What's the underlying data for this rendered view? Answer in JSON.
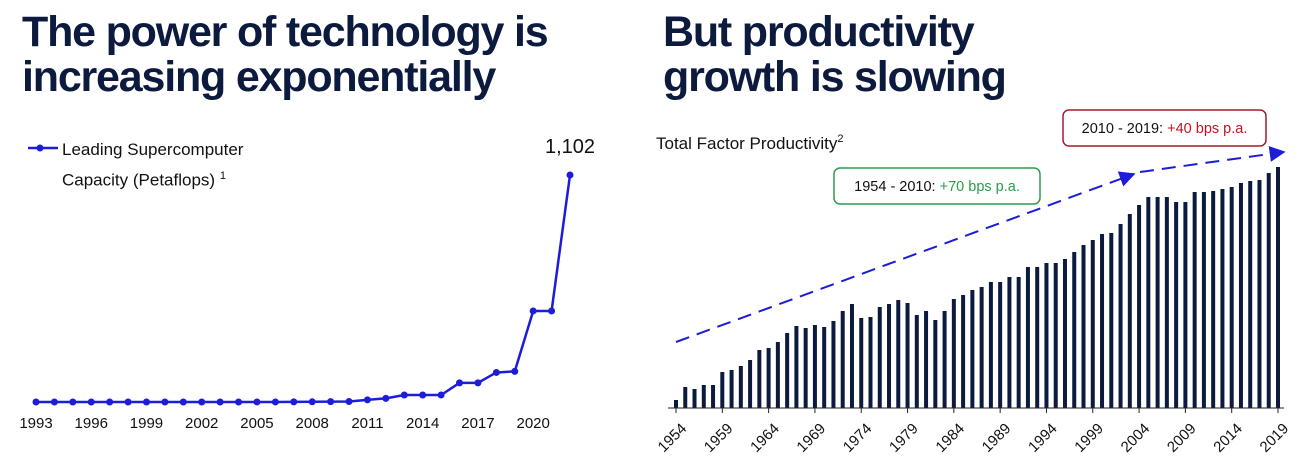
{
  "chart_data": [
    {
      "type": "line",
      "title": [
        "The power of technology is",
        "increasing exponentially"
      ],
      "x": [
        1993,
        1994,
        1995,
        1996,
        1997,
        1998,
        1999,
        2000,
        2001,
        2002,
        2003,
        2004,
        2005,
        2006,
        2007,
        2008,
        2009,
        2010,
        2011,
        2012,
        2013,
        2014,
        2015,
        2016,
        2017,
        2018,
        2019,
        2020,
        2021,
        2022
      ],
      "series": [
        {
          "name": "Leading Supercomputer Capacity (Petaflops)",
          "footnote": "1",
          "color": "#1c1cd9",
          "values": [
            6e-05,
            0.00014,
            0.00017,
            0.00037,
            0.0013,
            0.0013,
            0.0024,
            0.0049,
            0.0072,
            0.036,
            0.036,
            0.071,
            0.281,
            0.281,
            0.478,
            1.026,
            1.759,
            2.566,
            10.51,
            17.59,
            33.86,
            33.86,
            33.86,
            93.01,
            93.01,
            143.5,
            148.6,
            442,
            442,
            1102
          ],
          "value_labels": [
            null,
            null,
            null,
            null,
            null,
            null,
            null,
            null,
            null,
            null,
            null,
            null,
            null,
            null,
            null,
            null,
            null,
            null,
            null,
            null,
            null,
            null,
            null,
            null,
            null,
            null,
            null,
            null,
            null,
            "1,102"
          ]
        }
      ],
      "xlim": [
        1993,
        2022
      ],
      "xticks": [
        1993,
        1996,
        1999,
        2002,
        2005,
        2008,
        2011,
        2014,
        2017,
        2020
      ],
      "ylim": [
        0,
        1102
      ]
    },
    {
      "type": "bar",
      "title": [
        "But productivity",
        "growth is slowing"
      ],
      "subtitle": "Total Factor Productivity",
      "subtitle_footnote": "2",
      "x": [
        1954,
        1955,
        1956,
        1957,
        1958,
        1959,
        1960,
        1961,
        1962,
        1963,
        1964,
        1965,
        1966,
        1967,
        1968,
        1969,
        1970,
        1971,
        1972,
        1973,
        1974,
        1975,
        1976,
        1977,
        1978,
        1979,
        1980,
        1981,
        1982,
        1983,
        1984,
        1985,
        1986,
        1987,
        1988,
        1989,
        1990,
        1991,
        1992,
        1993,
        1994,
        1995,
        1996,
        1997,
        1998,
        1999,
        2000,
        2001,
        2002,
        2003,
        2004,
        2005,
        2006,
        2007,
        2008,
        2009,
        2010,
        2011,
        2012,
        2013,
        2014,
        2015,
        2016,
        2017,
        2018,
        2019
      ],
      "values": [
        8,
        21,
        19,
        23,
        23,
        36,
        38,
        42,
        48,
        58,
        60,
        66,
        75,
        82,
        80,
        83,
        81,
        87,
        97,
        104,
        90,
        91,
        101,
        104,
        108,
        105,
        93,
        97,
        88,
        97,
        109,
        113,
        118,
        121,
        126,
        126,
        131,
        131,
        141,
        141,
        145,
        145,
        149,
        156,
        163,
        168,
        174,
        175,
        184,
        194,
        203,
        211,
        211,
        211,
        206,
        206,
        216,
        216,
        217,
        219,
        221,
        225,
        227,
        228,
        235,
        241
      ],
      "color": "#0b1a3d",
      "xlim": [
        1954,
        2019
      ],
      "xticks": [
        1954,
        1959,
        1964,
        1969,
        1974,
        1979,
        1984,
        1989,
        1994,
        1999,
        2004,
        2009,
        2014,
        2019
      ],
      "ylim": [
        0,
        256
      ],
      "annotations": [
        {
          "text": "1954 - 2010: ",
          "highlight": "+70 bps p.a.",
          "highlight_color": "#2a9d4b",
          "border_color": "#2a9d4b"
        },
        {
          "text": "2010 - 2019: ",
          "highlight": "+40 bps p.a.",
          "highlight_color": "#c4121f",
          "border_color": "#a31d2b"
        }
      ]
    }
  ]
}
